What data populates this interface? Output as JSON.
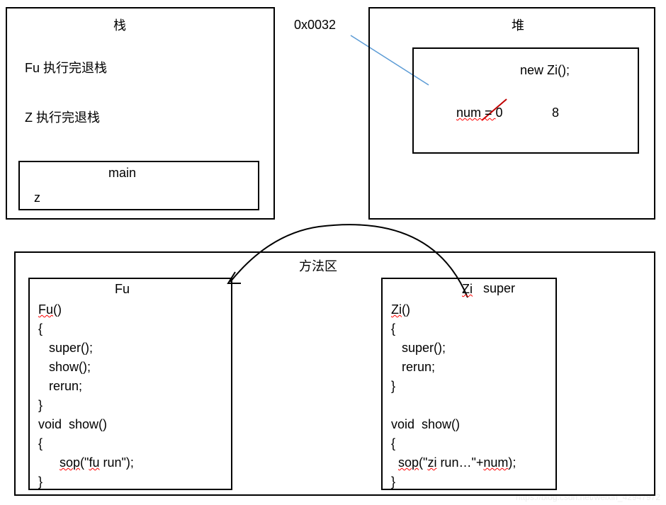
{
  "stack": {
    "title": "栈",
    "line1": "Fu 执行完退栈",
    "line2": "Z 执行完退栈",
    "main_label": "main",
    "z_label": "z"
  },
  "heap": {
    "title": "堆",
    "address": "0x0032",
    "new_expr": "new  Zi();",
    "num_eq": "num = ",
    "num_old": "0",
    "num_new": "8"
  },
  "method_area": {
    "title": "方法区",
    "super_label": "super",
    "fu": {
      "title": "Fu",
      "code_lines": [
        "Fu()",
        "{",
        "   super();",
        "   show();",
        "   rerun;",
        "}",
        "void  show()",
        "{",
        "      sop(\"fu run\");",
        "}"
      ]
    },
    "zi": {
      "title": "Zi",
      "code_lines": [
        "Zi()",
        "{",
        "   super();",
        "   rerun;",
        "}",
        "",
        "void  show()",
        "{",
        "  sop(\"zi run…\"+num);",
        "}"
      ]
    }
  },
  "styling": {
    "stroke_color": "#000000",
    "stroke_width": 2,
    "font_size": 18,
    "background": "#ffffff",
    "connector_color": "#5b9bd5",
    "strikeout_color": "#c00000",
    "arrow_stroke": "#000000"
  },
  "watermark": "https://blog.csdn.net/weixin_42947972"
}
